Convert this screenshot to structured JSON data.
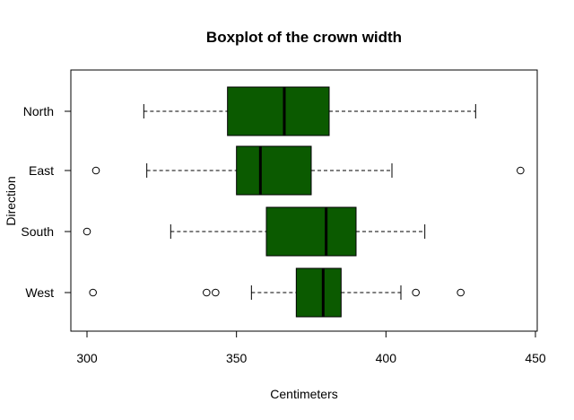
{
  "chart_data": {
    "type": "boxplot",
    "orientation": "horizontal",
    "title": "Boxplot of the crown width",
    "xlabel": "Centimeters",
    "ylabel": "Direction",
    "xlim": [
      300,
      450
    ],
    "xticks": [
      300,
      350,
      400,
      450
    ],
    "box_color": "#0b5a00",
    "groups": [
      {
        "name": "North",
        "whisker_low": 319,
        "q1": 347,
        "median": 366,
        "q3": 381,
        "whisker_high": 430,
        "outliers": []
      },
      {
        "name": "East",
        "whisker_low": 320,
        "q1": 350,
        "median": 358,
        "q3": 375,
        "whisker_high": 402,
        "outliers": [
          303,
          445
        ]
      },
      {
        "name": "South",
        "whisker_low": 328,
        "q1": 360,
        "median": 380,
        "q3": 390,
        "whisker_high": 413,
        "outliers": [
          300
        ]
      },
      {
        "name": "West",
        "whisker_low": 355,
        "q1": 370,
        "median": 379,
        "q3": 385,
        "whisker_high": 405,
        "outliers": [
          302,
          340,
          343,
          410,
          425
        ]
      }
    ]
  }
}
